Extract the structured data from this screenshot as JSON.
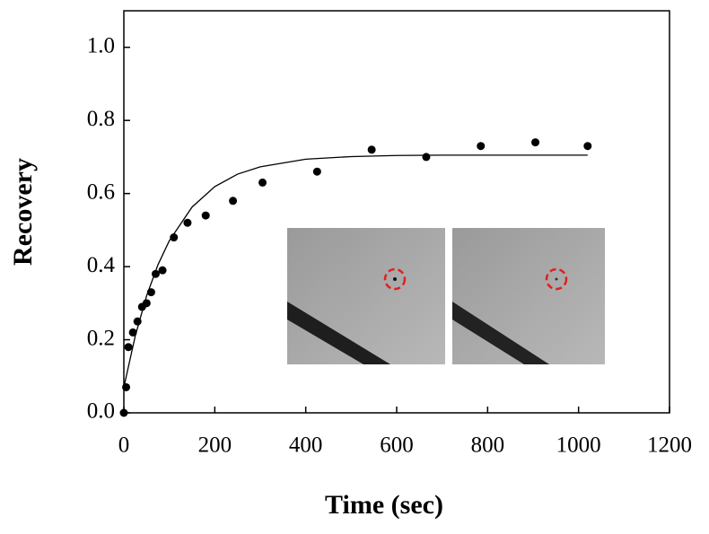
{
  "chart_data": {
    "type": "scatter",
    "x_label": "Time (sec)",
    "y_label": "Recovery",
    "xlim": [
      0,
      1200
    ],
    "ylim": [
      0,
      1.1
    ],
    "xticks": [
      0,
      200,
      400,
      600,
      800,
      1000,
      1200
    ],
    "yticks": [
      {
        "value": 0,
        "label": "0.0"
      },
      {
        "value": 0.2,
        "label": "0.2"
      },
      {
        "value": 0.4,
        "label": "0.4"
      },
      {
        "value": 0.6,
        "label": "0.6"
      },
      {
        "value": 0.8,
        "label": "0.8"
      },
      {
        "value": 1,
        "label": "1.0"
      }
    ],
    "series": [
      {
        "type": "scatter",
        "color": "#000000",
        "x": [
          0,
          5,
          10,
          20,
          30,
          40,
          50,
          60,
          70,
          85,
          110,
          140,
          180,
          240,
          305,
          425,
          545,
          665,
          785,
          905,
          1020
        ],
        "values": [
          0.0,
          0.07,
          0.18,
          0.22,
          0.25,
          0.29,
          0.3,
          0.33,
          0.38,
          0.39,
          0.48,
          0.52,
          0.54,
          0.58,
          0.63,
          0.66,
          0.72,
          0.7,
          0.73,
          0.74,
          0.73
        ]
      },
      {
        "type": "line",
        "color": "#000000",
        "x": [
          0,
          25,
          50,
          75,
          100,
          150,
          200,
          250,
          300,
          400,
          500,
          600,
          700,
          800,
          900,
          1020
        ],
        "values": [
          0.07,
          0.21,
          0.32,
          0.405,
          0.471,
          0.563,
          0.619,
          0.653,
          0.673,
          0.694,
          0.701,
          0.704,
          0.705,
          0.705,
          0.705,
          0.705
        ]
      }
    ]
  }
}
